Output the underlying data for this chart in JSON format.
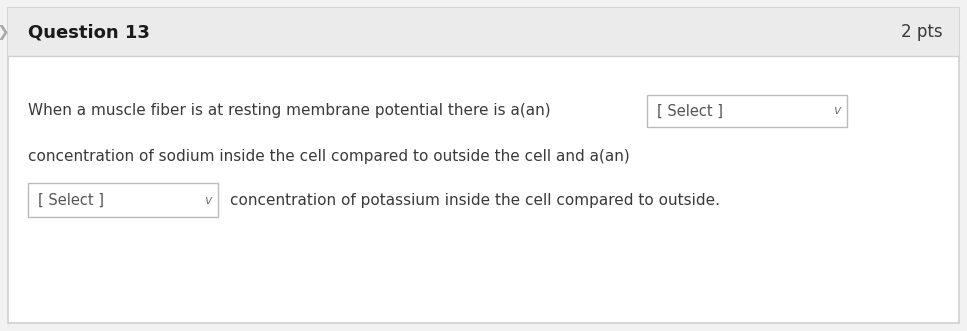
{
  "question_label": "Question 13",
  "pts_label": "2 pts",
  "line1_text": "When a muscle fiber is at resting membrane potential there is a(an)",
  "line2_text": "concentration of sodium inside the cell compared to outside the cell and a(an)",
  "line3_suffix": "concentration of potassium inside the cell compared to outside.",
  "dropdown1_text": "[ Select ]",
  "dropdown2_text": "[ Select ]",
  "outer_bg": "#f2f2f2",
  "header_bg": "#ebebeb",
  "body_bg": "#ffffff",
  "border_color": "#d0d0d0",
  "header_text_color": "#1a1a1a",
  "body_text_color": "#3a3a3a",
  "pts_text_color": "#3a3a3a",
  "dropdown_bg": "#ffffff",
  "dropdown_border": "#bbbbbb",
  "dropdown_text_color": "#555555",
  "arrow_color": "#777777",
  "figure_width": 9.67,
  "figure_height": 3.31,
  "dpi": 100
}
